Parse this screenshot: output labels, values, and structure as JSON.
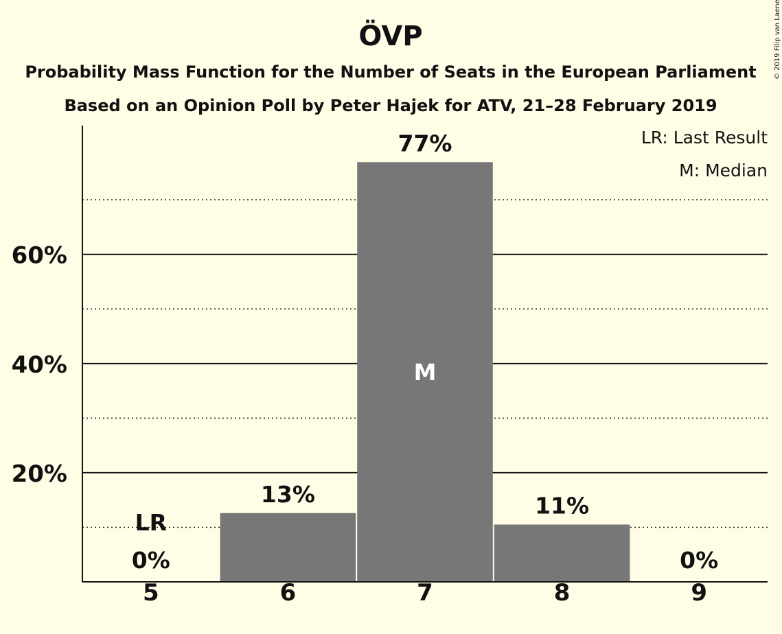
{
  "chart_data": {
    "type": "bar",
    "title": "ÖVP",
    "subtitle": "Probability Mass Function for the Number of Seats in the European Parliament",
    "subtitle2": "Based on an Opinion Poll by Peter Hajek for ATV, 21–28 February 2019",
    "copyright": "© 2019 Filip van Laenen",
    "categories": [
      "5",
      "6",
      "7",
      "8",
      "9"
    ],
    "values": [
      0,
      12.6,
      76.9,
      10.5,
      0
    ],
    "value_labels": [
      "0%",
      "13%",
      "77%",
      "11%",
      "0%"
    ],
    "ylim": [
      0,
      83.6
    ],
    "yticks": [
      20,
      40,
      60
    ],
    "ytick_labels": [
      "20%",
      "40%",
      "60%"
    ],
    "minor_gridlines": [
      10,
      30,
      50,
      70
    ],
    "grid": true,
    "bar_color": "#777777",
    "last_result": {
      "category": "5",
      "label": "LR"
    },
    "median": {
      "category": "7",
      "label": "M"
    },
    "legend": {
      "placement": "top-right",
      "items": [
        "LR: Last Result",
        "M: Median"
      ]
    }
  }
}
